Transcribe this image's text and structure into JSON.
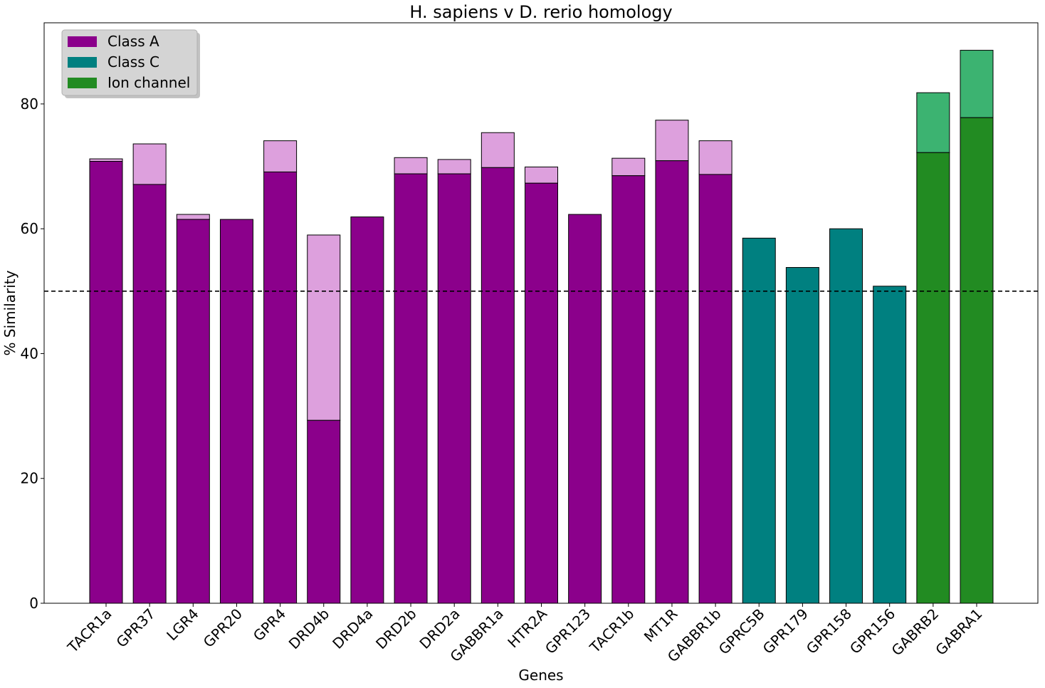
{
  "chart_data": {
    "type": "bar",
    "stacked": true,
    "title": "H. sapiens v D. rerio homology",
    "xlabel": "Genes",
    "ylabel": "% Similarity",
    "ylim": [
      0,
      93
    ],
    "yticks": [
      0,
      20,
      40,
      60,
      80
    ],
    "grid": false,
    "reference_line": {
      "y": 50,
      "style": "dashed",
      "color": "#000000"
    },
    "categories": [
      "TACR1a",
      "GPR37",
      "LGR4",
      "GPR20",
      "GPR4",
      "DRD4b",
      "DRD4a",
      "DRD2b",
      "DRD2a",
      "GABBR1a",
      "HTR2A",
      "GPR123",
      "TACR1b",
      "MT1R",
      "GABBR1b",
      "GPRC5B",
      "GPR179",
      "GPR158",
      "GPR156",
      "GABRB2",
      "GABRA1"
    ],
    "class": [
      "Class A",
      "Class A",
      "Class A",
      "Class A",
      "Class A",
      "Class A",
      "Class A",
      "Class A",
      "Class A",
      "Class A",
      "Class A",
      "Class A",
      "Class A",
      "Class A",
      "Class A",
      "Class C",
      "Class C",
      "Class C",
      "Class C",
      "Ion channel",
      "Ion channel"
    ],
    "base_values": [
      70.8,
      67.1,
      61.5,
      61.5,
      69.1,
      29.3,
      61.9,
      68.8,
      68.8,
      69.8,
      67.3,
      62.3,
      68.5,
      70.9,
      68.7,
      58.5,
      53.8,
      60.0,
      50.8,
      72.2,
      77.8
    ],
    "top_values": [
      71.2,
      73.6,
      62.3,
      61.5,
      74.1,
      59.0,
      61.9,
      71.4,
      71.1,
      75.4,
      69.9,
      62.3,
      71.3,
      77.4,
      74.1,
      58.5,
      53.8,
      60.0,
      50.8,
      81.8,
      88.6
    ],
    "colors": {
      "Class A": {
        "base": "#8B008B",
        "top": "#DDA0DD"
      },
      "Class C": {
        "base": "#008080",
        "top": "#66B2B2"
      },
      "Ion channel": {
        "base": "#228B22",
        "top": "#3CB371"
      }
    },
    "legend": {
      "placement": "top-left",
      "entries": [
        {
          "label": "Class A",
          "color": "#8B008B"
        },
        {
          "label": "Class C",
          "color": "#008080"
        },
        {
          "label": "Ion channel",
          "color": "#228B22"
        }
      ]
    }
  }
}
